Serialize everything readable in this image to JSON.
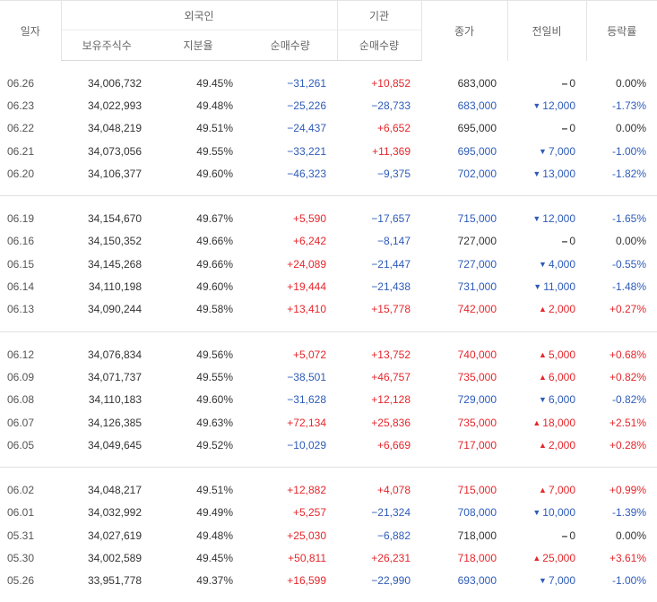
{
  "header": {
    "date": "일자",
    "foreign": "외국인",
    "institution": "기관",
    "close": "종가",
    "change": "전일비",
    "rate": "등락률",
    "holdings": "보유주식수",
    "ratio": "지분율",
    "foreign_net": "순매수량",
    "inst_net": "순매수량"
  },
  "colors": {
    "up": "#e5262b",
    "down": "#2e5bb8",
    "flat": "#333333"
  },
  "icons": {
    "up": "triangle-up-icon",
    "down": "triangle-down-icon",
    "flat": "dash-icon"
  },
  "rows": [
    {
      "date": "06.26",
      "holdings": "34,006,732",
      "ratio": "49.45%",
      "foreign_net": "−31,261",
      "inst_net": "+10,852",
      "close": "683,000",
      "dir": "flat",
      "change": "0",
      "rate": "0.00%"
    },
    {
      "date": "06.23",
      "holdings": "34,022,993",
      "ratio": "49.48%",
      "foreign_net": "−25,226",
      "inst_net": "−28,733",
      "close": "683,000",
      "dir": "down",
      "change": "12,000",
      "rate": "-1.73%"
    },
    {
      "date": "06.22",
      "holdings": "34,048,219",
      "ratio": "49.51%",
      "foreign_net": "−24,437",
      "inst_net": "+6,652",
      "close": "695,000",
      "dir": "flat",
      "change": "0",
      "rate": "0.00%"
    },
    {
      "date": "06.21",
      "holdings": "34,073,056",
      "ratio": "49.55%",
      "foreign_net": "−33,221",
      "inst_net": "+11,369",
      "close": "695,000",
      "dir": "down",
      "change": "7,000",
      "rate": "-1.00%"
    },
    {
      "date": "06.20",
      "holdings": "34,106,377",
      "ratio": "49.60%",
      "foreign_net": "−46,323",
      "inst_net": "−9,375",
      "close": "702,000",
      "dir": "down",
      "change": "13,000",
      "rate": "-1.82%"
    },
    {
      "date": "06.19",
      "holdings": "34,154,670",
      "ratio": "49.67%",
      "foreign_net": "+5,590",
      "inst_net": "−17,657",
      "close": "715,000",
      "dir": "down",
      "change": "12,000",
      "rate": "-1.65%"
    },
    {
      "date": "06.16",
      "holdings": "34,150,352",
      "ratio": "49.66%",
      "foreign_net": "+6,242",
      "inst_net": "−8,147",
      "close": "727,000",
      "dir": "flat",
      "change": "0",
      "rate": "0.00%"
    },
    {
      "date": "06.15",
      "holdings": "34,145,268",
      "ratio": "49.66%",
      "foreign_net": "+24,089",
      "inst_net": "−21,447",
      "close": "727,000",
      "dir": "down",
      "change": "4,000",
      "rate": "-0.55%"
    },
    {
      "date": "06.14",
      "holdings": "34,110,198",
      "ratio": "49.60%",
      "foreign_net": "+19,444",
      "inst_net": "−21,438",
      "close": "731,000",
      "dir": "down",
      "change": "11,000",
      "rate": "-1.48%"
    },
    {
      "date": "06.13",
      "holdings": "34,090,244",
      "ratio": "49.58%",
      "foreign_net": "+13,410",
      "inst_net": "+15,778",
      "close": "742,000",
      "dir": "up",
      "change": "2,000",
      "rate": "+0.27%"
    },
    {
      "date": "06.12",
      "holdings": "34,076,834",
      "ratio": "49.56%",
      "foreign_net": "+5,072",
      "inst_net": "+13,752",
      "close": "740,000",
      "dir": "up",
      "change": "5,000",
      "rate": "+0.68%"
    },
    {
      "date": "06.09",
      "holdings": "34,071,737",
      "ratio": "49.55%",
      "foreign_net": "−38,501",
      "inst_net": "+46,757",
      "close": "735,000",
      "dir": "up",
      "change": "6,000",
      "rate": "+0.82%"
    },
    {
      "date": "06.08",
      "holdings": "34,110,183",
      "ratio": "49.60%",
      "foreign_net": "−31,628",
      "inst_net": "+12,128",
      "close": "729,000",
      "dir": "down",
      "change": "6,000",
      "rate": "-0.82%"
    },
    {
      "date": "06.07",
      "holdings": "34,126,385",
      "ratio": "49.63%",
      "foreign_net": "+72,134",
      "inst_net": "+25,836",
      "close": "735,000",
      "dir": "up",
      "change": "18,000",
      "rate": "+2.51%"
    },
    {
      "date": "06.05",
      "holdings": "34,049,645",
      "ratio": "49.52%",
      "foreign_net": "−10,029",
      "inst_net": "+6,669",
      "close": "717,000",
      "dir": "up",
      "change": "2,000",
      "rate": "+0.28%"
    },
    {
      "date": "06.02",
      "holdings": "34,048,217",
      "ratio": "49.51%",
      "foreign_net": "+12,882",
      "inst_net": "+4,078",
      "close": "715,000",
      "dir": "up",
      "change": "7,000",
      "rate": "+0.99%"
    },
    {
      "date": "06.01",
      "holdings": "34,032,992",
      "ratio": "49.49%",
      "foreign_net": "+5,257",
      "inst_net": "−21,324",
      "close": "708,000",
      "dir": "down",
      "change": "10,000",
      "rate": "-1.39%"
    },
    {
      "date": "05.31",
      "holdings": "34,027,619",
      "ratio": "49.48%",
      "foreign_net": "+25,030",
      "inst_net": "−6,882",
      "close": "718,000",
      "dir": "flat",
      "change": "0",
      "rate": "0.00%"
    },
    {
      "date": "05.30",
      "holdings": "34,002,589",
      "ratio": "49.45%",
      "foreign_net": "+50,811",
      "inst_net": "+26,231",
      "close": "718,000",
      "dir": "up",
      "change": "25,000",
      "rate": "+3.61%"
    },
    {
      "date": "05.26",
      "holdings": "33,951,778",
      "ratio": "49.37%",
      "foreign_net": "+16,599",
      "inst_net": "−22,990",
      "close": "693,000",
      "dir": "down",
      "change": "7,000",
      "rate": "-1.00%"
    }
  ]
}
